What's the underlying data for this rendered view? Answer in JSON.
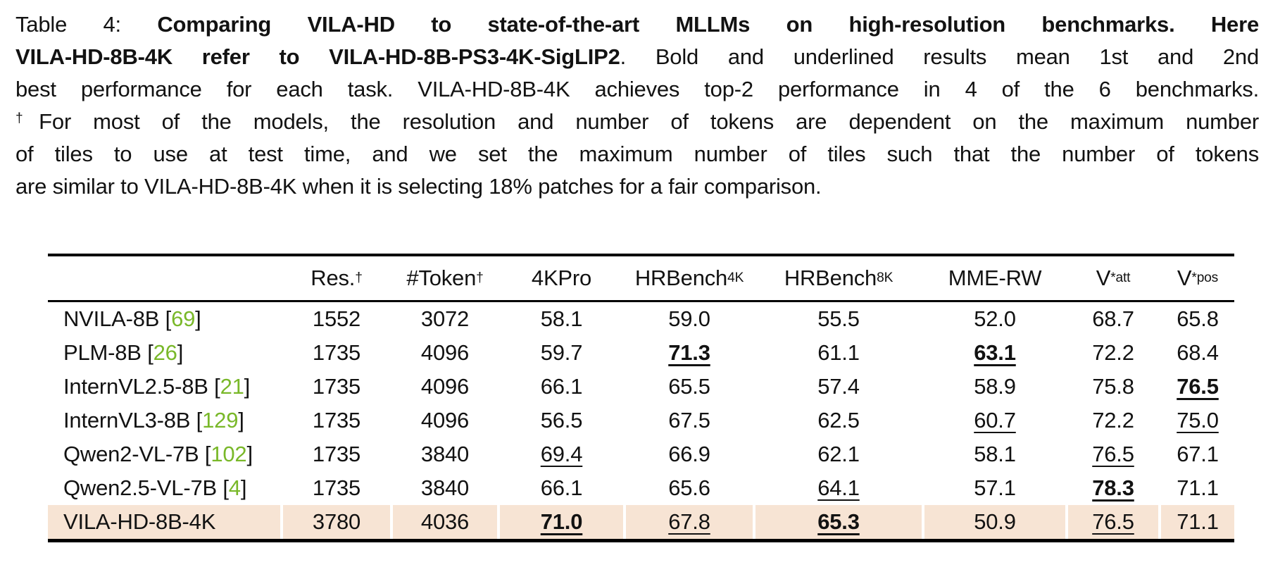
{
  "page": {
    "background": "#ffffff",
    "text_color": "#121212"
  },
  "colors": {
    "citation_green": "#79b829",
    "highlight_row": "#f7e4d4",
    "rule_black": "#000000"
  },
  "caption": {
    "lines": [
      {
        "justify": true,
        "segments": [
          {
            "text": "Table 4: ",
            "bold": false
          },
          {
            "text": "Comparing VILA-HD to state-of-the-art MLLMs on high-resolution benchmarks. Here",
            "bold": true
          }
        ]
      },
      {
        "justify": true,
        "segments": [
          {
            "text": "VILA-HD-8B-4K refer to VILA-HD-8B-PS3-4K-SigLIP2",
            "bold": true
          },
          {
            "text": ". Bold and underlined results mean 1st and 2nd",
            "bold": false
          }
        ]
      },
      {
        "justify": true,
        "segments": [
          {
            "text": "best performance for each task. VILA-HD-8B-4K achieves top-2 performance in 4 of the 6 benchmarks.",
            "bold": false
          }
        ]
      },
      {
        "justify": true,
        "segments": [
          {
            "text": "†",
            "bold": false,
            "sup": true
          },
          {
            "text": "For most of the models, the resolution and number of tokens are dependent on the maximum number",
            "bold": false
          }
        ]
      },
      {
        "justify": true,
        "segments": [
          {
            "text": "of tiles to use at test time, and we set the maximum number of tiles such that the number of tokens",
            "bold": false
          }
        ]
      },
      {
        "justify": false,
        "segments": [
          {
            "text": "are similar to VILA-HD-8B-4K when it is selecting 18% patches for a fair comparison.",
            "bold": false
          }
        ]
      }
    ]
  },
  "table": {
    "header": [
      {
        "label": "",
        "name": "model-column-header"
      },
      {
        "label": "Res.",
        "sup": "†",
        "name": "resolution-column-header"
      },
      {
        "label": "#Token",
        "sup": "†",
        "name": "token-column-header"
      },
      {
        "label": "4KPro",
        "name": "4kpro-column-header"
      },
      {
        "label": "HRBench",
        "sub": "4K",
        "name": "hrbench4k-column-header"
      },
      {
        "label": "HRBench",
        "sub": "8K",
        "name": "hrbench8k-column-header"
      },
      {
        "label": "MME-RW",
        "name": "mme-rw-column-header"
      },
      {
        "label": "V",
        "sup": "*",
        "sub": "att",
        "name": "vstar-att-column-header"
      },
      {
        "label": "V",
        "sup": "*",
        "sub": "pos",
        "name": "vstar-pos-column-header"
      }
    ],
    "rows": [
      {
        "model": "NVILA-8B",
        "cite": "69",
        "highlight": false,
        "cells": [
          {
            "v": "1552"
          },
          {
            "v": "3072"
          },
          {
            "v": "58.1"
          },
          {
            "v": "59.0"
          },
          {
            "v": "55.5"
          },
          {
            "v": "52.0"
          },
          {
            "v": "68.7"
          },
          {
            "v": "65.8"
          }
        ]
      },
      {
        "model": "PLM-8B",
        "cite": "26",
        "highlight": false,
        "cells": [
          {
            "v": "1735"
          },
          {
            "v": "4096"
          },
          {
            "v": "59.7"
          },
          {
            "v": "71.3",
            "bold": true,
            "underline": true
          },
          {
            "v": "61.1"
          },
          {
            "v": "63.1",
            "bold": true,
            "underline": true
          },
          {
            "v": "72.2"
          },
          {
            "v": "68.4"
          }
        ]
      },
      {
        "model": "InternVL2.5-8B",
        "cite": "21",
        "highlight": false,
        "cells": [
          {
            "v": "1735"
          },
          {
            "v": "4096"
          },
          {
            "v": "66.1"
          },
          {
            "v": "65.5"
          },
          {
            "v": "57.4"
          },
          {
            "v": "58.9"
          },
          {
            "v": "75.8"
          },
          {
            "v": "76.5",
            "bold": true,
            "underline": true
          }
        ]
      },
      {
        "model": "InternVL3-8B",
        "cite": "129",
        "highlight": false,
        "cells": [
          {
            "v": "1735"
          },
          {
            "v": "4096"
          },
          {
            "v": "56.5"
          },
          {
            "v": "67.5"
          },
          {
            "v": "62.5"
          },
          {
            "v": "60.7",
            "underline": true
          },
          {
            "v": "72.2"
          },
          {
            "v": "75.0",
            "underline": true
          }
        ]
      },
      {
        "model": "Qwen2-VL-7B",
        "cite": "102",
        "highlight": false,
        "cells": [
          {
            "v": "1735"
          },
          {
            "v": "3840"
          },
          {
            "v": "69.4",
            "underline": true
          },
          {
            "v": "66.9"
          },
          {
            "v": "62.1"
          },
          {
            "v": "58.1"
          },
          {
            "v": "76.5",
            "underline": true
          },
          {
            "v": "67.1"
          }
        ]
      },
      {
        "model": "Qwen2.5-VL-7B",
        "cite": "4",
        "highlight": false,
        "cells": [
          {
            "v": "1735"
          },
          {
            "v": "3840"
          },
          {
            "v": "66.1"
          },
          {
            "v": "65.6"
          },
          {
            "v": "64.1",
            "underline": true
          },
          {
            "v": "57.1"
          },
          {
            "v": "78.3",
            "bold": true,
            "underline": true
          },
          {
            "v": "71.1"
          }
        ]
      },
      {
        "model": "VILA-HD-8B-4K",
        "cite": null,
        "highlight": true,
        "cells": [
          {
            "v": "3780"
          },
          {
            "v": "4036"
          },
          {
            "v": "71.0",
            "bold": true,
            "underline": true
          },
          {
            "v": "67.8",
            "underline": true
          },
          {
            "v": "65.3",
            "bold": true,
            "underline": true
          },
          {
            "v": "50.9"
          },
          {
            "v": "76.5",
            "underline": true
          },
          {
            "v": "71.1"
          }
        ]
      }
    ]
  }
}
